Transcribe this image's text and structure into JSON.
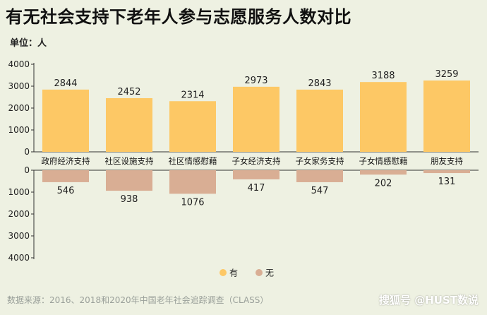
{
  "title": "有无社会支持下老年人参与志愿服务人数对比",
  "unit_label": "单位：人",
  "source": "数据来源：2016、2018和2020年中国老年社会追踪调查（CLASS）",
  "watermark": "搜狐号 @HUST数说",
  "colors": {
    "has_support": "#fdc865",
    "no_support": "#d9ae94",
    "background": "#eef1e2"
  },
  "chart_data": {
    "type": "bar",
    "categories": [
      "政府经济支持",
      "社区设施支持",
      "社区情感慰藉",
      "子女经济支持",
      "子女家务支持",
      "子女情感慰藉",
      "朋友支持"
    ],
    "series": [
      {
        "name": "有",
        "values": [
          2844,
          2452,
          2314,
          2973,
          2843,
          3188,
          3259
        ]
      },
      {
        "name": "无",
        "values": [
          546,
          938,
          1076,
          417,
          547,
          202,
          131
        ]
      }
    ],
    "ylim_top": [
      0,
      4000
    ],
    "ylim_bottom": [
      0,
      4000
    ],
    "yticks": [
      0,
      1000,
      2000,
      3000,
      4000
    ],
    "legend_position": "bottom-center",
    "grid": false
  }
}
